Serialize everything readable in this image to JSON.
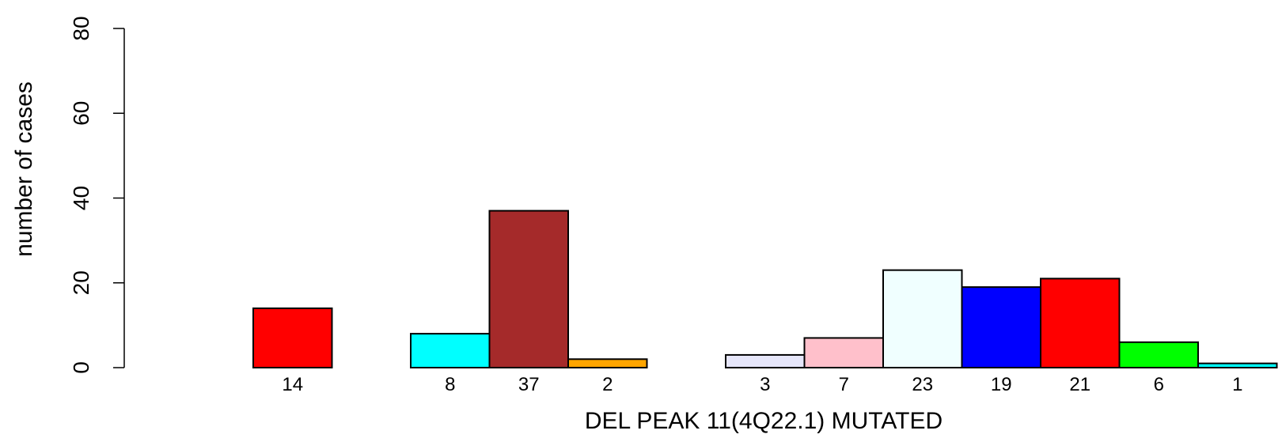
{
  "chart_data": {
    "type": "bar",
    "xlabel": "DEL PEAK 11(4Q22.1) MUTATED",
    "ylabel": "number of cases",
    "ylim": [
      0,
      80
    ],
    "yticks": [
      0,
      20,
      40,
      60,
      80
    ],
    "grid": false,
    "legend": "none",
    "bars": [
      {
        "slot": 0,
        "value": 14,
        "label": "14",
        "color": "#FF0000"
      },
      {
        "slot": 2,
        "value": 8,
        "label": "8",
        "color": "#00FFFF"
      },
      {
        "slot": 3,
        "value": 37,
        "label": "37",
        "color": "#A52A2A"
      },
      {
        "slot": 4,
        "value": 2,
        "label": "2",
        "color": "#FFA500"
      },
      {
        "slot": 6,
        "value": 3,
        "label": "3",
        "color": "#E6E6FA"
      },
      {
        "slot": 7,
        "value": 7,
        "label": "7",
        "color": "#FFC0CB"
      },
      {
        "slot": 8,
        "value": 23,
        "label": "23",
        "color": "#F0FFFF"
      },
      {
        "slot": 9,
        "value": 19,
        "label": "19",
        "color": "#0000FF"
      },
      {
        "slot": 10,
        "value": 21,
        "label": "21",
        "color": "#FF0000"
      },
      {
        "slot": 11,
        "value": 6,
        "label": "6",
        "color": "#00FF00"
      },
      {
        "slot": 12,
        "value": 1,
        "label": "1",
        "color": "#00FFFF"
      }
    ]
  }
}
